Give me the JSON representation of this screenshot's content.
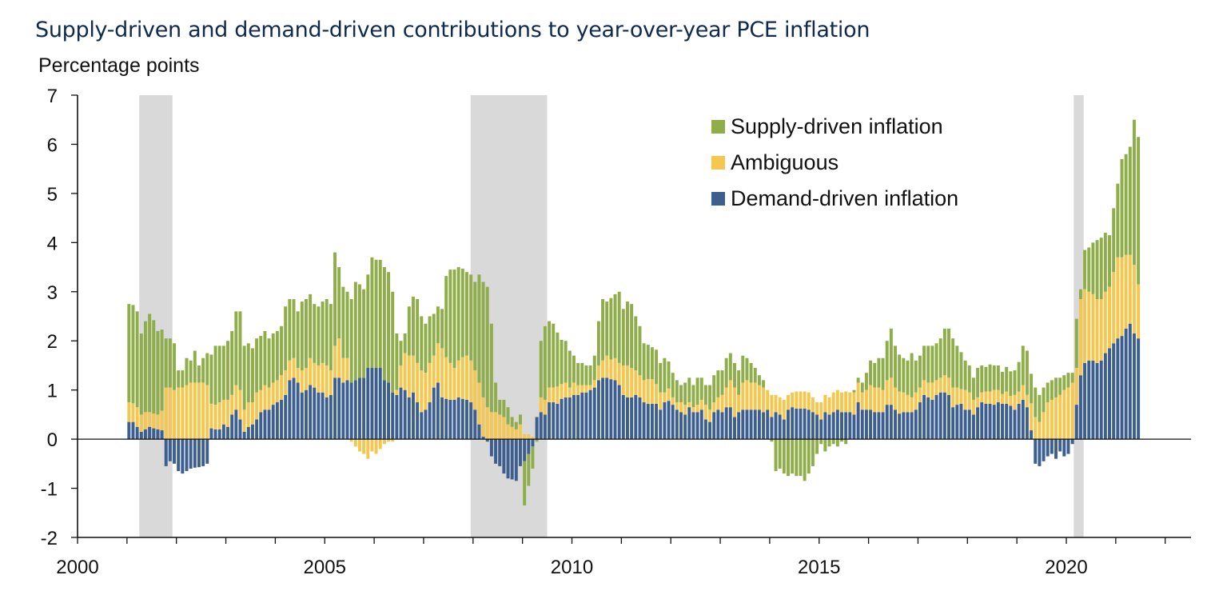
{
  "title": "Supply-driven and demand-driven contributions to year-over-year PCE inflation",
  "colors": {
    "supply": "#8fae4a",
    "ambiguous": "#f5c74f",
    "demand": "#3d5f8f",
    "recession": "#d9d9d9",
    "axis": "#111111"
  },
  "legend": [
    {
      "label": "Supply-driven inflation",
      "series": "supply"
    },
    {
      "label": "Ambiguous",
      "series": "ambiguous"
    },
    {
      "label": "Demand-driven inflation",
      "series": "demand"
    }
  ],
  "chart_data": {
    "type": "bar",
    "stacked": true,
    "title": "Supply-driven and demand-driven contributions to year-over-year PCE inflation",
    "ylabel": "Percentage points",
    "xlabel": "",
    "ylim": [
      -2,
      7
    ],
    "yticks": [
      -2,
      -1,
      0,
      1,
      2,
      3,
      4,
      5,
      6,
      7
    ],
    "xlim": [
      2000,
      2022.45
    ],
    "xticks": [
      2000,
      2005,
      2010,
      2015,
      2020
    ],
    "x_minor_ticks_every_year": true,
    "legend_position": "top-right",
    "grid": false,
    "frequency": "monthly",
    "start": "2001-01",
    "recessions": [
      [
        2001.25,
        2001.92
      ],
      [
        2007.95,
        2009.5
      ],
      [
        2020.15,
        2020.35
      ]
    ],
    "series_order": [
      "demand",
      "ambiguous",
      "supply"
    ],
    "series": [
      {
        "name": "Demand-driven inflation",
        "key": "demand",
        "values": [
          0.35,
          0.35,
          0.25,
          0.15,
          0.2,
          0.25,
          0.22,
          0.2,
          0.18,
          -0.55,
          -0.45,
          -0.5,
          -0.65,
          -0.7,
          -0.65,
          -0.6,
          -0.58,
          -0.57,
          -0.55,
          -0.5,
          0.22,
          0.2,
          0.2,
          0.3,
          0.25,
          0.5,
          0.6,
          0.4,
          0.15,
          0.25,
          0.3,
          0.4,
          0.55,
          0.6,
          0.6,
          0.7,
          0.75,
          0.8,
          0.9,
          1.2,
          1.25,
          1.15,
          0.95,
          1.0,
          1.1,
          1.05,
          0.95,
          0.95,
          0.85,
          0.9,
          1.25,
          1.25,
          1.15,
          1.2,
          1.15,
          1.2,
          1.25,
          1.25,
          1.45,
          1.45,
          1.45,
          1.45,
          1.2,
          1.15,
          0.95,
          0.9,
          1.05,
          1.0,
          0.85,
          0.95,
          0.75,
          0.55,
          0.6,
          0.75,
          1.05,
          1.15,
          0.85,
          0.82,
          0.8,
          0.8,
          0.85,
          0.82,
          0.8,
          0.75,
          0.6,
          0.3,
          0.05,
          -0.05,
          -0.35,
          -0.5,
          -0.55,
          -0.7,
          -0.8,
          -0.82,
          -0.85,
          -0.55,
          -0.45,
          -0.3,
          -0.15,
          0.45,
          0.55,
          0.5,
          0.75,
          0.75,
          0.72,
          0.82,
          0.85,
          0.85,
          0.9,
          0.9,
          0.95,
          0.95,
          1.0,
          1.05,
          1.2,
          1.25,
          1.25,
          1.22,
          1.2,
          1.1,
          0.9,
          0.85,
          0.85,
          0.9,
          0.85,
          0.75,
          0.72,
          0.72,
          0.72,
          0.6,
          0.75,
          0.78,
          0.7,
          0.6,
          0.55,
          0.5,
          0.65,
          0.55,
          0.55,
          0.6,
          0.4,
          0.35,
          0.55,
          0.6,
          0.55,
          0.65,
          0.65,
          0.45,
          0.55,
          0.6,
          0.6,
          0.6,
          0.6,
          0.6,
          0.55,
          0.6,
          0.45,
          0.55,
          0.5,
          0.4,
          0.6,
          0.65,
          0.62,
          0.62,
          0.62,
          0.6,
          0.55,
          0.5,
          0.4,
          0.55,
          0.5,
          0.55,
          0.6,
          0.55,
          0.55,
          0.55,
          0.5,
          0.75,
          0.6,
          0.6,
          0.6,
          0.55,
          0.55,
          0.55,
          0.7,
          0.7,
          0.6,
          0.52,
          0.55,
          0.55,
          0.55,
          0.6,
          0.75,
          0.9,
          0.85,
          0.8,
          0.9,
          0.95,
          0.95,
          0.9,
          0.65,
          0.7,
          0.72,
          0.6,
          0.6,
          0.5,
          0.65,
          0.75,
          0.72,
          0.72,
          0.7,
          0.75,
          0.72,
          0.72,
          0.68,
          0.6,
          0.72,
          0.8,
          0.65,
          0.18,
          -0.5,
          -0.55,
          -0.45,
          -0.35,
          -0.3,
          -0.4,
          -0.25,
          -0.35,
          -0.3,
          -0.1,
          0.7,
          1.3,
          1.55,
          1.6,
          1.6,
          1.55,
          1.6,
          1.75,
          1.85,
          1.95,
          2.05,
          2.1,
          2.25,
          2.35,
          2.15,
          2.05
        ]
      },
      {
        "name": "Ambiguous",
        "key": "ambiguous",
        "values": [
          0.4,
          0.38,
          0.4,
          0.35,
          0.35,
          0.3,
          0.3,
          0.3,
          0.4,
          1.05,
          1.05,
          1.0,
          1.05,
          1.05,
          1.1,
          1.15,
          1.15,
          1.15,
          1.15,
          1.1,
          0.5,
          0.5,
          0.55,
          0.5,
          0.55,
          0.4,
          0.5,
          0.6,
          0.45,
          0.5,
          0.45,
          0.55,
          0.45,
          0.5,
          0.45,
          0.45,
          0.45,
          0.5,
          0.5,
          0.4,
          0.4,
          0.3,
          0.45,
          0.45,
          0.55,
          0.5,
          0.55,
          0.6,
          0.65,
          0.5,
          0.65,
          0.8,
          0.5,
          0.45,
          -0.05,
          -0.15,
          -0.25,
          -0.3,
          -0.4,
          -0.25,
          -0.3,
          -0.2,
          -0.1,
          -0.05,
          -0.05,
          0.1,
          0.45,
          0.75,
          0.85,
          0.75,
          0.8,
          0.85,
          0.75,
          0.8,
          0.65,
          0.8,
          1.0,
          0.85,
          0.75,
          0.65,
          0.75,
          0.85,
          0.9,
          0.85,
          0.8,
          0.85,
          0.8,
          0.65,
          0.55,
          0.55,
          0.5,
          0.45,
          0.3,
          0.25,
          0.2,
          0.3,
          0.1,
          0.1,
          0.05,
          0.0,
          0.3,
          0.3,
          0.3,
          0.3,
          0.35,
          0.3,
          0.3,
          0.2,
          0.25,
          0.2,
          0.15,
          0.15,
          0.1,
          0.15,
          0.3,
          0.35,
          0.45,
          0.4,
          0.45,
          0.45,
          0.6,
          0.65,
          0.6,
          0.5,
          0.45,
          0.45,
          0.5,
          0.5,
          0.4,
          0.35,
          0.2,
          0.25,
          0.15,
          0.15,
          0.2,
          0.2,
          0.1,
          0.1,
          0.15,
          0.2,
          0.3,
          0.25,
          0.2,
          0.25,
          0.35,
          0.4,
          0.55,
          0.6,
          0.35,
          0.55,
          0.6,
          0.55,
          0.55,
          0.5,
          0.5,
          0.4,
          0.45,
          0.35,
          0.35,
          0.4,
          0.3,
          0.3,
          0.35,
          0.35,
          0.35,
          0.35,
          0.3,
          0.25,
          0.35,
          0.35,
          0.35,
          0.4,
          0.4,
          0.4,
          0.42,
          0.4,
          0.45,
          0.4,
          0.35,
          0.4,
          0.5,
          0.5,
          0.5,
          0.45,
          0.5,
          0.55,
          0.45,
          0.45,
          0.4,
          0.35,
          0.3,
          0.35,
          0.3,
          0.3,
          0.3,
          0.35,
          0.3,
          0.3,
          0.35,
          0.35,
          0.4,
          0.35,
          0.3,
          0.4,
          0.35,
          0.3,
          0.2,
          0.2,
          0.25,
          0.25,
          0.3,
          0.25,
          0.2,
          0.25,
          0.2,
          0.3,
          0.25,
          0.3,
          0.25,
          0.55,
          0.45,
          0.35,
          0.55,
          0.75,
          0.8,
          0.85,
          0.9,
          1.0,
          1.05,
          1.15,
          0.75,
          1.55,
          1.5,
          1.4,
          1.35,
          1.3,
          1.25,
          1.25,
          1.25,
          1.45,
          1.65,
          1.6,
          1.5,
          1.4,
          1.4,
          1.1
        ]
      },
      {
        "name": "Supply-driven inflation",
        "key": "supply",
        "values": [
          2.0,
          2.0,
          1.95,
          1.65,
          1.85,
          2.0,
          1.9,
          1.7,
          1.65,
          1.0,
          1.0,
          0.95,
          0.35,
          0.35,
          0.55,
          0.45,
          0.65,
          0.35,
          0.5,
          0.65,
          1.0,
          1.2,
          1.15,
          1.1,
          1.2,
          1.3,
          1.5,
          1.6,
          1.3,
          1.2,
          1.1,
          1.1,
          1.1,
          1.1,
          1.0,
          1.0,
          1.0,
          1.0,
          1.3,
          1.25,
          1.2,
          1.15,
          1.4,
          1.4,
          1.3,
          1.2,
          1.2,
          1.25,
          1.35,
          1.35,
          1.9,
          1.45,
          1.45,
          1.35,
          1.7,
          2.0,
          1.9,
          1.8,
          1.9,
          2.25,
          2.2,
          2.2,
          2.3,
          2.25,
          2.05,
          1.15,
          0.5,
          0.4,
          1.0,
          1.2,
          1.3,
          1.1,
          1.0,
          0.95,
          0.85,
          0.75,
          0.8,
          1.65,
          1.9,
          2.0,
          1.9,
          1.8,
          1.7,
          1.75,
          1.8,
          2.2,
          2.35,
          2.45,
          1.8,
          0.6,
          0.3,
          0.35,
          0.35,
          0.2,
          0.15,
          0.2,
          -0.9,
          -0.65,
          -0.45,
          -0.05,
          1.15,
          1.5,
          1.35,
          1.3,
          1.1,
          0.9,
          0.85,
          0.75,
          0.55,
          0.45,
          0.45,
          0.4,
          0.4,
          0.5,
          0.9,
          1.25,
          1.1,
          1.25,
          1.3,
          1.45,
          1.15,
          1.3,
          1.3,
          1.1,
          1.0,
          0.75,
          0.7,
          0.65,
          0.7,
          0.6,
          0.7,
          0.55,
          0.5,
          0.45,
          0.35,
          0.45,
          0.5,
          0.45,
          0.55,
          0.45,
          0.4,
          0.5,
          0.55,
          0.55,
          0.5,
          0.6,
          0.55,
          0.5,
          0.5,
          0.55,
          0.45,
          0.4,
          0.3,
          0.2,
          0.15,
          0.0,
          -0.05,
          -0.65,
          -0.6,
          -0.7,
          -0.75,
          -0.7,
          -0.75,
          -0.75,
          -0.85,
          -0.7,
          -0.55,
          -0.3,
          -0.1,
          -0.25,
          -0.15,
          -0.1,
          -0.15,
          -0.05,
          -0.1,
          0.0,
          0.05,
          0.1,
          0.2,
          0.35,
          0.5,
          0.5,
          0.6,
          0.65,
          0.8,
          1.0,
          0.85,
          0.75,
          0.7,
          0.7,
          0.9,
          0.65,
          0.65,
          0.7,
          0.75,
          0.75,
          0.75,
          0.8,
          0.95,
          1.0,
          1.0,
          0.85,
          0.75,
          0.6,
          0.55,
          0.45,
          0.6,
          0.55,
          0.5,
          0.55,
          0.5,
          0.5,
          0.45,
          0.5,
          0.5,
          0.5,
          0.6,
          0.8,
          0.9,
          0.6,
          0.6,
          0.55,
          0.5,
          0.4,
          0.4,
          0.4,
          0.35,
          0.3,
          0.3,
          0.2,
          1.0,
          0.2,
          0.8,
          0.9,
          1.05,
          1.2,
          1.25,
          1.2,
          1.05,
          1.3,
          1.5,
          2.0,
          2.05,
          2.2,
          2.95,
          3.0
        ]
      }
    ]
  },
  "axis": {
    "y_tick_labels": [
      "7",
      "6",
      "5",
      "4",
      "3",
      "2",
      "1",
      "0",
      "-1",
      "-2"
    ],
    "x_tick_labels": [
      "2000",
      "2005",
      "2010",
      "2015",
      "2020"
    ]
  }
}
